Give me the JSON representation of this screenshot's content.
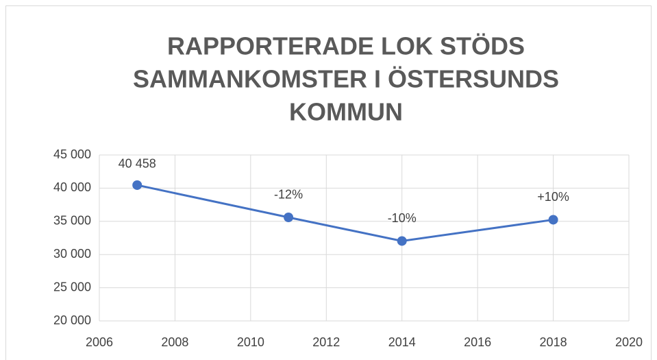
{
  "chart_data": {
    "type": "line",
    "title": [
      "RAPPORTERADE LOK STÖDS",
      "SAMMANKOMSTER I ÖSTERSUNDS",
      "KOMMUN"
    ],
    "x": [
      2007,
      2011,
      2014,
      2018
    ],
    "series": [
      {
        "color": "#4472c4",
        "values": [
          40458,
          35600,
          32040,
          35244
        ],
        "value_labels": [
          "40 458",
          null,
          null,
          null
        ]
      }
    ],
    "annotations": [
      null,
      "-12%",
      "-10%",
      "+10%"
    ],
    "xlim": [
      2006,
      2020
    ],
    "xticks": [
      2006,
      2008,
      2010,
      2012,
      2014,
      2016,
      2018,
      2020
    ],
    "ylim": [
      20000,
      45000
    ],
    "yticks": [
      {
        "value": 20000,
        "label": "20 000"
      },
      {
        "value": 25000,
        "label": "25 000"
      },
      {
        "value": 30000,
        "label": "30 000"
      },
      {
        "value": 35000,
        "label": "35 000"
      },
      {
        "value": 40000,
        "label": "40 000"
      },
      {
        "value": 45000,
        "label": "45 000"
      }
    ],
    "grid": true
  }
}
